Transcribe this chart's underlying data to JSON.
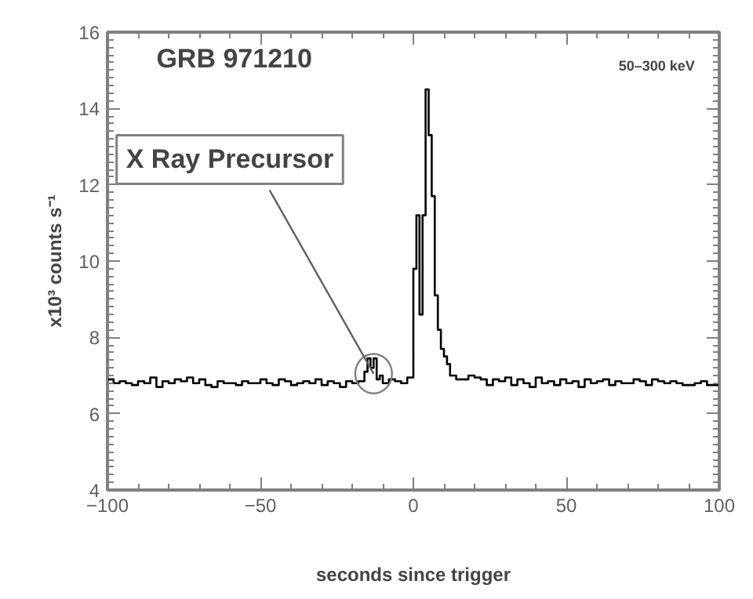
{
  "chart_data": {
    "type": "step",
    "title": "GRB 971210",
    "subtitle": "50–300 keV",
    "xlabel": "seconds since trigger",
    "ylabel": "x10³ counts s⁻¹",
    "x": [
      -100,
      -98,
      -96,
      -94,
      -92,
      -90,
      -88,
      -86,
      -84,
      -82,
      -80,
      -78,
      -76,
      -74,
      -72,
      -70,
      -68,
      -66,
      -64,
      -62,
      -60,
      -58,
      -56,
      -54,
      -52,
      -50,
      -48,
      -46,
      -44,
      -42,
      -40,
      -38,
      -36,
      -34,
      -32,
      -30,
      -28,
      -26,
      -24,
      -22,
      -20,
      -18,
      -16,
      -15,
      -14,
      -13,
      -12,
      -11,
      -10,
      -8,
      -6,
      -4,
      -2,
      0,
      1,
      2,
      3,
      4,
      5,
      6,
      7,
      8,
      9,
      10,
      11,
      12,
      14,
      16,
      18,
      20,
      22,
      24,
      26,
      28,
      30,
      32,
      34,
      36,
      38,
      40,
      42,
      44,
      46,
      48,
      50,
      52,
      54,
      56,
      58,
      60,
      62,
      64,
      66,
      68,
      70,
      72,
      74,
      76,
      78,
      80,
      82,
      84,
      86,
      88,
      90,
      92,
      94,
      96,
      98,
      100
    ],
    "series": [
      {
        "color": "#000000",
        "values": [
          6.9,
          6.8,
          6.85,
          6.8,
          6.75,
          6.85,
          6.8,
          6.95,
          6.7,
          6.85,
          6.8,
          6.9,
          6.85,
          6.95,
          6.8,
          6.9,
          6.75,
          6.7,
          6.85,
          6.8,
          6.8,
          6.75,
          6.85,
          6.8,
          6.8,
          6.9,
          6.8,
          6.75,
          6.9,
          6.85,
          6.75,
          6.8,
          6.85,
          6.8,
          6.9,
          6.75,
          6.85,
          6.8,
          6.7,
          6.85,
          6.8,
          6.85,
          7.1,
          7.45,
          7.2,
          7.45,
          6.9,
          7.0,
          6.8,
          6.9,
          6.85,
          6.8,
          6.95,
          9.8,
          11.2,
          8.6,
          11.2,
          14.5,
          13.3,
          11.7,
          9.1,
          8.2,
          7.7,
          7.5,
          7.3,
          7.0,
          6.9,
          6.9,
          7.0,
          6.95,
          6.9,
          6.75,
          6.9,
          6.85,
          6.95,
          6.75,
          6.9,
          6.8,
          6.7,
          6.95,
          6.8,
          6.85,
          6.75,
          6.9,
          6.8,
          6.85,
          6.7,
          6.9,
          6.8,
          6.85,
          6.9,
          6.75,
          6.85,
          6.8,
          6.8,
          6.9,
          6.85,
          6.75,
          6.9,
          6.85,
          6.8,
          6.85,
          6.8,
          6.75,
          6.75,
          6.8,
          6.85,
          6.75,
          6.75,
          6.75
        ]
      }
    ],
    "xlim": [
      -100,
      100
    ],
    "ylim": [
      4,
      16
    ],
    "xticks": [
      -100,
      -50,
      0,
      50,
      100
    ],
    "yticks": [
      4,
      6,
      8,
      10,
      12,
      14,
      16
    ],
    "grid": false,
    "line_style": "solid",
    "annotations": [
      {
        "text": "X Ray Precursor",
        "x": -13,
        "y": 7.05
      }
    ]
  }
}
